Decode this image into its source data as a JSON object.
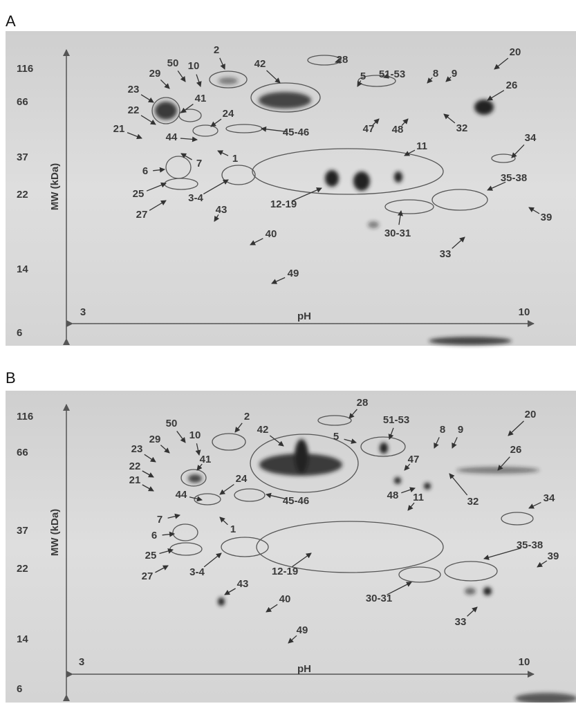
{
  "panels": [
    {
      "label": "A",
      "mw_axis_label": "MW (kDa)",
      "mw_ticks": [
        "116",
        "66",
        "37",
        "22",
        "14",
        "6"
      ],
      "ph_axis_label": "pH",
      "ph_ticks": [
        "3",
        "10"
      ],
      "spots": [
        "28",
        "2",
        "50",
        "10",
        "42",
        "5",
        "51-53",
        "8",
        "9",
        "20",
        "29",
        "23",
        "41",
        "26",
        "22",
        "24",
        "47",
        "48",
        "32",
        "21",
        "45-46",
        "44",
        "1",
        "11",
        "34",
        "7",
        "6",
        "25",
        "3-4",
        "12-19",
        "35-38",
        "27",
        "43",
        "39",
        "30-31",
        "40",
        "33",
        "49"
      ]
    },
    {
      "label": "B",
      "mw_axis_label": "MW (kDa)",
      "mw_ticks": [
        "116",
        "66",
        "37",
        "22",
        "14",
        "6"
      ],
      "ph_axis_label": "pH",
      "ph_ticks": [
        "3",
        "10"
      ],
      "spots": [
        "28",
        "2",
        "50",
        "10",
        "42",
        "5",
        "51-53",
        "8",
        "9",
        "20",
        "29",
        "23",
        "41",
        "26",
        "22",
        "24",
        "47",
        "48",
        "32",
        "21",
        "45-46",
        "44",
        "1",
        "11",
        "34",
        "7",
        "6",
        "25",
        "3-4",
        "12-19",
        "35-38",
        "27",
        "43",
        "39",
        "30-31",
        "40",
        "33",
        "49"
      ]
    }
  ]
}
